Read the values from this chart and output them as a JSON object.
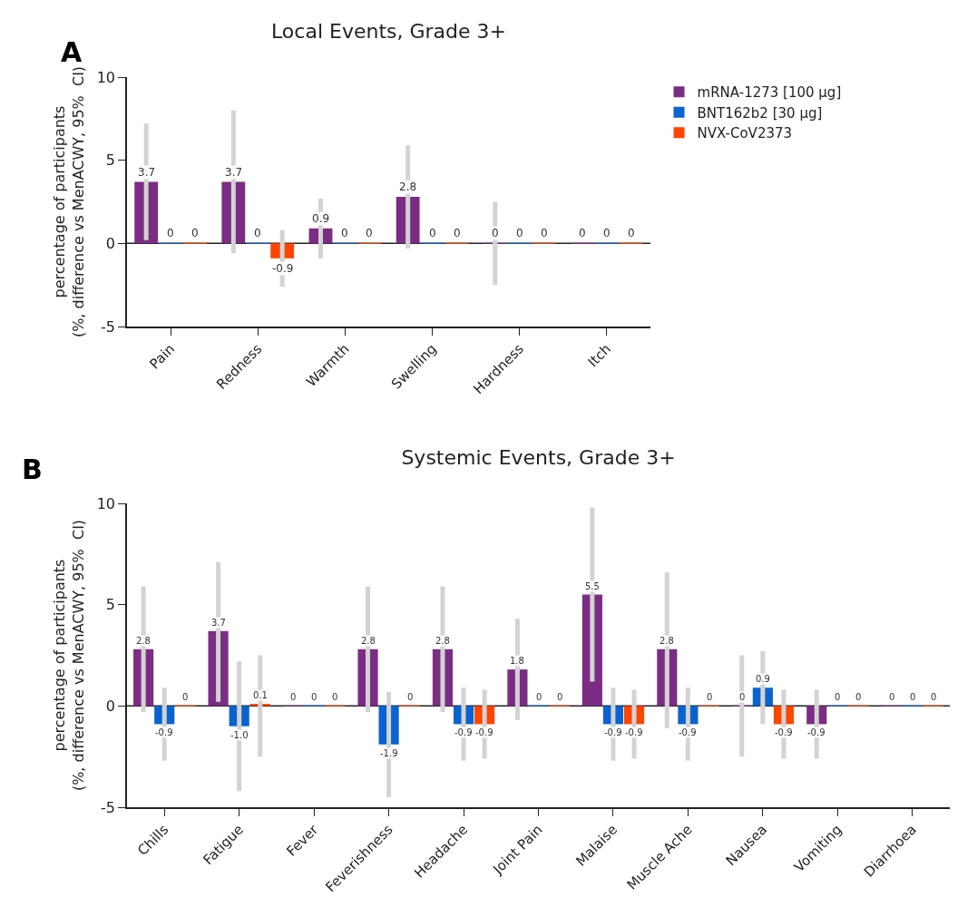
{
  "chart_data": [
    {
      "type": "bar",
      "title": "Local Events, Grade 3+",
      "ylabel": "percentage of participants\n(%, difference vs MenACWY, 95%  CI)",
      "annotations": [
        "A"
      ],
      "categories": [
        "Pain",
        "Redness",
        "Warmth",
        "Swelling",
        "Hardness",
        "Itch"
      ],
      "ylim": [
        -5,
        10
      ],
      "yticks": [
        -5,
        0,
        5,
        10
      ],
      "grid": false,
      "legend": "top right",
      "ref_lines": [
        {
          "axis": "y",
          "value": 0,
          "color": "#222222"
        }
      ],
      "series": [
        {
          "name": "mRNA-1273 [100 µg]",
          "color": "#7b2d83",
          "values": [
            3.7,
            3.7,
            0.9,
            2.8,
            0,
            0
          ],
          "value_labels": [
            "3.7",
            "3.7",
            "0.9",
            "2.8",
            "0",
            "0"
          ],
          "errors": [
            [
              0.2,
              7.2
            ],
            [
              -0.6,
              8.0
            ],
            [
              -0.9,
              2.7
            ],
            [
              -0.3,
              5.9
            ],
            [
              -2.5,
              2.5
            ],
            null
          ]
        },
        {
          "name": "BNT162b2 [30 µg]",
          "color": "#0a63cf",
          "values": [
            0,
            0,
            0,
            0,
            0,
            0
          ],
          "value_labels": [
            "0",
            "0",
            "0",
            "0",
            "0",
            "0"
          ]
        },
        {
          "name": "NVX-CoV2373",
          "color": "#ff4500",
          "values": [
            0,
            -0.9,
            0,
            0,
            0,
            0
          ],
          "value_labels": [
            "0",
            "-0.9",
            "0",
            "0",
            "0",
            "0"
          ],
          "errors": [
            null,
            [
              -2.6,
              0.8
            ],
            null,
            null,
            null,
            null
          ]
        }
      ]
    },
    {
      "type": "bar",
      "title": "Systemic Events, Grade 3+",
      "ylabel": "percentage of participants\n(%, difference vs MenACWY, 95%  CI)",
      "annotations": [
        "B"
      ],
      "categories": [
        "Chills",
        "Fatigue",
        "Fever",
        "Feverishness",
        "Headache",
        "Joint Pain",
        "Malaise",
        "Muscle Ache",
        "Nausea",
        "Vomiting",
        "Diarrhoea"
      ],
      "ylim": [
        -5,
        10
      ],
      "yticks": [
        -5,
        0,
        5,
        10
      ],
      "grid": false,
      "ref_lines": [
        {
          "axis": "y",
          "value": 0,
          "color": "#222222"
        }
      ],
      "series": [
        {
          "color": "#7b2d83",
          "values": [
            2.8,
            3.7,
            0,
            2.8,
            2.8,
            1.8,
            5.5,
            2.8,
            0,
            -0.9,
            0
          ],
          "value_labels": [
            "2.8",
            "3.7",
            "0",
            "2.8",
            "2.8",
            "1.8",
            "5.5",
            "2.8",
            "0",
            "-0.9",
            "0"
          ],
          "errors": [
            [
              -0.3,
              5.9
            ],
            [
              0.2,
              7.1
            ],
            null,
            [
              -0.3,
              5.9
            ],
            [
              -0.3,
              5.9
            ],
            [
              -0.7,
              4.3
            ],
            [
              1.2,
              9.8
            ],
            [
              -1.1,
              6.6
            ],
            [
              -2.5,
              2.5
            ],
            [
              -2.6,
              0.8
            ],
            null
          ]
        },
        {
          "color": "#0a63cf",
          "values": [
            -0.9,
            -1.0,
            0,
            -1.9,
            -0.9,
            0,
            -0.9,
            -0.9,
            0.9,
            0,
            0
          ],
          "value_labels": [
            "-0.9",
            "-1.0",
            "0",
            "-1.9",
            "-0.9",
            "0",
            "-0.9",
            "-0.9",
            "0.9",
            "0",
            "0"
          ],
          "errors": [
            [
              -2.7,
              0.9
            ],
            [
              -4.2,
              2.2
            ],
            null,
            [
              -4.5,
              0.7
            ],
            [
              -2.7,
              0.9
            ],
            null,
            [
              -2.7,
              0.9
            ],
            [
              -2.7,
              0.9
            ],
            [
              -0.9,
              2.7
            ],
            null,
            null
          ]
        },
        {
          "color": "#ff4500",
          "values": [
            0,
            0.1,
            0,
            0,
            -0.9,
            0,
            -0.9,
            0,
            -0.9,
            0,
            0
          ],
          "value_labels": [
            "0",
            "0.1",
            "0",
            "0",
            "-0.9",
            "0",
            "-0.9",
            "0",
            "-0.9",
            "0",
            "0"
          ],
          "errors": [
            null,
            [
              -2.5,
              2.5
            ],
            null,
            null,
            [
              -2.6,
              0.8
            ],
            null,
            [
              -2.6,
              0.8
            ],
            null,
            [
              -2.6,
              0.8
            ],
            null,
            null
          ]
        }
      ]
    }
  ]
}
